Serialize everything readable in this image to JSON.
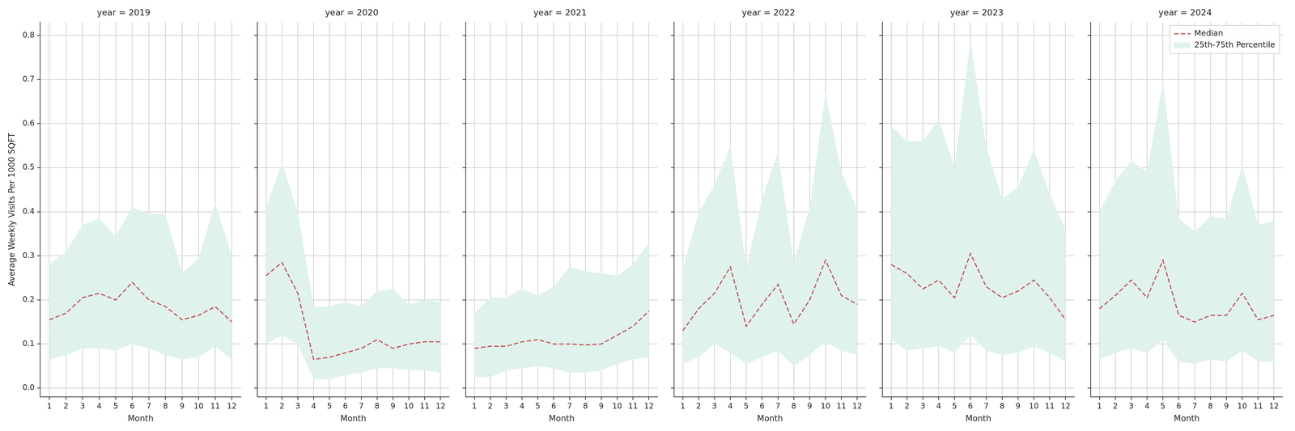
{
  "chart_data": [
    {
      "type": "line",
      "title": "year = 2019",
      "x_label": "Month",
      "y_label": "Average Weekly Visits Per 1000 SQFT",
      "x": [
        1,
        2,
        3,
        4,
        5,
        6,
        7,
        8,
        9,
        10,
        11,
        12
      ],
      "xlim": [
        0.45,
        12.55
      ],
      "xticks": [
        1,
        2,
        3,
        4,
        5,
        6,
        7,
        8,
        9,
        10,
        11,
        12
      ],
      "ylim": [
        -0.02,
        0.83
      ],
      "yticks": [
        {
          "value": 0,
          "label": "0.0"
        },
        0.1,
        0.2,
        0.3,
        0.4,
        0.5,
        0.6,
        0.7,
        0.8
      ],
      "grid": true,
      "series": [
        {
          "name": "Median",
          "color": "#c44e52",
          "line_style": "dashed",
          "values": [
            0.155,
            0.17,
            0.205,
            0.215,
            0.2,
            0.24,
            0.2,
            0.185,
            0.155,
            0.165,
            0.185,
            0.15
          ]
        },
        {
          "name": "25th-75th Percentile",
          "type": "band",
          "color": "#dff2ec",
          "lower": [
            0.065,
            0.075,
            0.09,
            0.09,
            0.085,
            0.1,
            0.09,
            0.075,
            0.065,
            0.07,
            0.095,
            0.065
          ],
          "upper": [
            0.28,
            0.31,
            0.37,
            0.385,
            0.345,
            0.41,
            0.395,
            0.395,
            0.26,
            0.295,
            0.42,
            0.3
          ]
        }
      ]
    },
    {
      "type": "line",
      "title": "year = 2020",
      "x_label": "Month",
      "tick_labels": "x",
      "x": [
        1,
        2,
        3,
        4,
        5,
        6,
        7,
        8,
        9,
        10,
        11,
        12
      ],
      "xlim": [
        0.45,
        12.55
      ],
      "xticks": [
        1,
        2,
        3,
        4,
        5,
        6,
        7,
        8,
        9,
        10,
        11,
        12
      ],
      "ylim": [
        -0.02,
        0.83
      ],
      "yticks": [
        {
          "value": 0,
          "label": "0.0"
        },
        0.1,
        0.2,
        0.3,
        0.4,
        0.5,
        0.6,
        0.7,
        0.8
      ],
      "grid": true,
      "series": [
        {
          "name": "Median",
          "color": "#c44e52",
          "line_style": "dashed",
          "values": [
            0.255,
            0.285,
            0.215,
            0.065,
            0.07,
            0.08,
            0.09,
            0.11,
            0.09,
            0.1,
            0.105,
            0.105
          ]
        },
        {
          "name": "25th-75th Percentile",
          "type": "band",
          "color": "#dff2ec",
          "lower": [
            0.1,
            0.12,
            0.1,
            0.02,
            0.02,
            0.03,
            0.035,
            0.045,
            0.045,
            0.04,
            0.04,
            0.035
          ],
          "upper": [
            0.41,
            0.51,
            0.4,
            0.185,
            0.185,
            0.195,
            0.185,
            0.22,
            0.225,
            0.19,
            0.2,
            0.195
          ]
        }
      ]
    },
    {
      "type": "line",
      "title": "year = 2021",
      "x_label": "Month",
      "tick_labels": "x",
      "x": [
        1,
        2,
        3,
        4,
        5,
        6,
        7,
        8,
        9,
        10,
        11,
        12
      ],
      "xlim": [
        0.45,
        12.55
      ],
      "xticks": [
        1,
        2,
        3,
        4,
        5,
        6,
        7,
        8,
        9,
        10,
        11,
        12
      ],
      "ylim": [
        -0.02,
        0.83
      ],
      "yticks": [
        {
          "value": 0,
          "label": "0.0"
        },
        0.1,
        0.2,
        0.3,
        0.4,
        0.5,
        0.6,
        0.7,
        0.8
      ],
      "grid": true,
      "series": [
        {
          "name": "Median",
          "color": "#c44e52",
          "line_style": "dashed",
          "values": [
            0.09,
            0.095,
            0.095,
            0.105,
            0.11,
            0.1,
            0.1,
            0.098,
            0.1,
            0.12,
            0.14,
            0.175
          ]
        },
        {
          "name": "25th-75th Percentile",
          "type": "band",
          "color": "#dff2ec",
          "lower": [
            0.025,
            0.025,
            0.04,
            0.045,
            0.05,
            0.045,
            0.035,
            0.035,
            0.04,
            0.055,
            0.065,
            0.07
          ],
          "upper": [
            0.17,
            0.205,
            0.205,
            0.225,
            0.21,
            0.23,
            0.275,
            0.265,
            0.26,
            0.255,
            0.28,
            0.33
          ]
        }
      ]
    },
    {
      "type": "line",
      "title": "year = 2022",
      "x_label": "Month",
      "tick_labels": "x",
      "x": [
        1,
        2,
        3,
        4,
        5,
        6,
        7,
        8,
        9,
        10,
        11,
        12
      ],
      "xlim": [
        0.45,
        12.55
      ],
      "xticks": [
        1,
        2,
        3,
        4,
        5,
        6,
        7,
        8,
        9,
        10,
        11,
        12
      ],
      "ylim": [
        -0.02,
        0.83
      ],
      "yticks": [
        {
          "value": 0,
          "label": "0.0"
        },
        0.1,
        0.2,
        0.3,
        0.4,
        0.5,
        0.6,
        0.7,
        0.8
      ],
      "grid": true,
      "series": [
        {
          "name": "Median",
          "color": "#c44e52",
          "line_style": "dashed",
          "values": [
            0.13,
            0.18,
            0.215,
            0.275,
            0.14,
            0.19,
            0.235,
            0.145,
            0.2,
            0.29,
            0.21,
            0.19
          ]
        },
        {
          "name": "25th-75th Percentile",
          "type": "band",
          "color": "#dff2ec",
          "lower": [
            0.055,
            0.07,
            0.1,
            0.08,
            0.055,
            0.07,
            0.085,
            0.05,
            0.075,
            0.105,
            0.085,
            0.075
          ],
          "upper": [
            0.27,
            0.4,
            0.46,
            0.55,
            0.27,
            0.43,
            0.535,
            0.285,
            0.41,
            0.67,
            0.49,
            0.405
          ]
        }
      ]
    },
    {
      "type": "line",
      "title": "year = 2023",
      "x_label": "Month",
      "tick_labels": "x",
      "x": [
        1,
        2,
        3,
        4,
        5,
        6,
        7,
        8,
        9,
        10,
        11,
        12
      ],
      "xlim": [
        0.45,
        12.55
      ],
      "xticks": [
        1,
        2,
        3,
        4,
        5,
        6,
        7,
        8,
        9,
        10,
        11,
        12
      ],
      "ylim": [
        -0.02,
        0.83
      ],
      "yticks": [
        {
          "value": 0,
          "label": "0.0"
        },
        0.1,
        0.2,
        0.3,
        0.4,
        0.5,
        0.6,
        0.7,
        0.8
      ],
      "grid": true,
      "series": [
        {
          "name": "Median",
          "color": "#c44e52",
          "line_style": "dashed",
          "values": [
            0.28,
            0.26,
            0.225,
            0.245,
            0.205,
            0.305,
            0.23,
            0.205,
            0.22,
            0.245,
            0.205,
            0.155
          ]
        },
        {
          "name": "25th-75th Percentile",
          "type": "band",
          "color": "#dff2ec",
          "lower": [
            0.11,
            0.085,
            0.09,
            0.095,
            0.08,
            0.12,
            0.085,
            0.075,
            0.08,
            0.095,
            0.08,
            0.06
          ],
          "upper": [
            0.595,
            0.56,
            0.56,
            0.61,
            0.5,
            0.79,
            0.545,
            0.43,
            0.455,
            0.54,
            0.44,
            0.36
          ]
        }
      ]
    },
    {
      "type": "line",
      "title": "year = 2024",
      "x_label": "Month",
      "tick_labels": "x",
      "legend": "upper right",
      "x": [
        1,
        2,
        3,
        4,
        5,
        6,
        7,
        8,
        9,
        10,
        11,
        12
      ],
      "xlim": [
        0.45,
        12.55
      ],
      "xticks": [
        1,
        2,
        3,
        4,
        5,
        6,
        7,
        8,
        9,
        10,
        11,
        12
      ],
      "ylim": [
        -0.02,
        0.83
      ],
      "yticks": [
        {
          "value": 0,
          "label": "0.0"
        },
        0.1,
        0.2,
        0.3,
        0.4,
        0.5,
        0.6,
        0.7,
        0.8
      ],
      "grid": true,
      "series": [
        {
          "name": "Median",
          "color": "#c44e52",
          "line_style": "dashed",
          "values": [
            0.18,
            0.21,
            0.245,
            0.205,
            0.29,
            0.165,
            0.15,
            0.165,
            0.165,
            0.215,
            0.155,
            0.165
          ]
        },
        {
          "name": "25th-75th Percentile",
          "type": "band",
          "color": "#dff2ec",
          "lower": [
            0.065,
            0.08,
            0.09,
            0.08,
            0.11,
            0.06,
            0.055,
            0.065,
            0.06,
            0.085,
            0.06,
            0.06
          ],
          "upper": [
            0.4,
            0.47,
            0.515,
            0.49,
            0.695,
            0.385,
            0.355,
            0.39,
            0.385,
            0.505,
            0.37,
            0.38
          ]
        }
      ]
    }
  ]
}
